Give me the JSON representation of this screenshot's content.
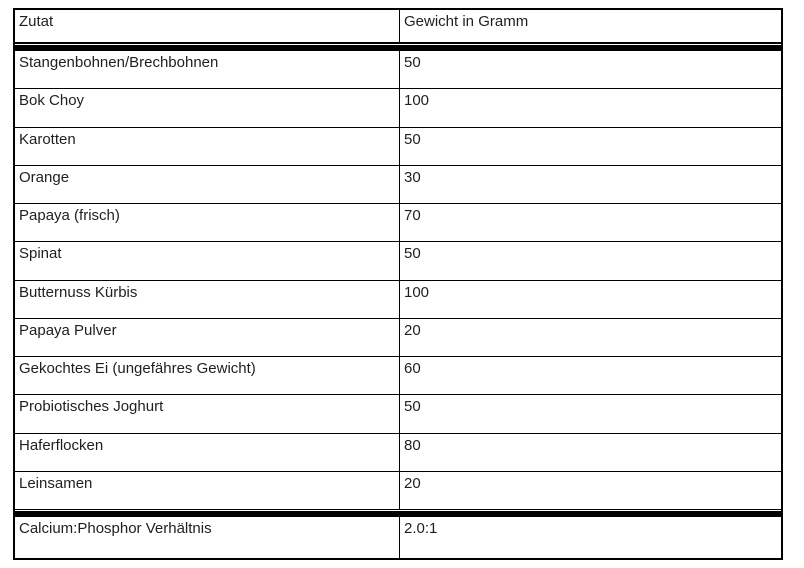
{
  "table": {
    "columns": [
      "Zutat",
      "Gewicht in Gramm"
    ],
    "rows": [
      {
        "ingredient": "Stangenbohnen/Brechbohnen",
        "weight": "50"
      },
      {
        "ingredient": "Bok Choy",
        "weight": "100"
      },
      {
        "ingredient": "Karotten",
        "weight": "50"
      },
      {
        "ingredient": "Orange",
        "weight": "30"
      },
      {
        "ingredient": "Papaya (frisch)",
        "weight": "70"
      },
      {
        "ingredient": "Spinat",
        "weight": "50"
      },
      {
        "ingredient": "Butternuss Kürbis",
        "weight": "100"
      },
      {
        "ingredient": "Papaya Pulver",
        "weight": "20"
      },
      {
        "ingredient": "Gekochtes Ei (ungefähres Gewicht)",
        "weight": "60"
      },
      {
        "ingredient": "Probiotisches Joghurt",
        "weight": "50"
      },
      {
        "ingredient": "Haferflocken",
        "weight": "80"
      },
      {
        "ingredient": "Leinsamen",
        "weight": "20"
      }
    ],
    "footer": {
      "label": "Calcium:Phosphor Verhältnis",
      "value": "2.0:1"
    },
    "colors": {
      "border": "#000000",
      "text": "#1f1f1f",
      "background": "#ffffff"
    }
  }
}
